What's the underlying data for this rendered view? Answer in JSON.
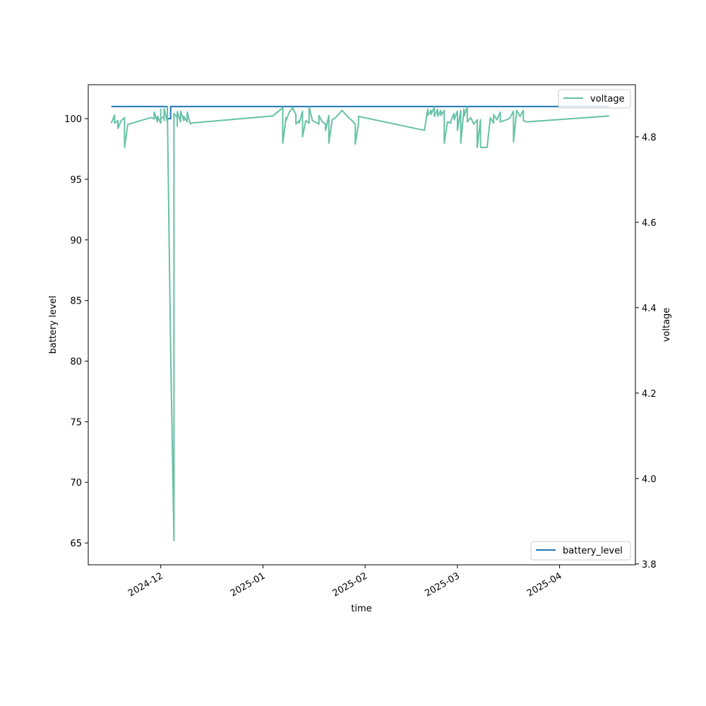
{
  "chart_data": {
    "type": "line",
    "title": "",
    "xlabel": "time",
    "x_tick_labels": [
      "2024-12",
      "2025-01",
      "2025-02",
      "2025-03",
      "2025-04"
    ],
    "x_tick_dates": [
      "2024-12-01",
      "2025-01-01",
      "2025-02-01",
      "2025-03-01",
      "2025-04-01"
    ],
    "x_range": [
      "2024-11-09",
      "2025-04-24"
    ],
    "left_axis": {
      "label": "battery level",
      "ylim": [
        63.2,
        102.8
      ],
      "ticks": [
        65,
        70,
        75,
        80,
        85,
        90,
        95,
        100
      ]
    },
    "right_axis": {
      "label": "voltage",
      "ylim": [
        3.798,
        4.922
      ],
      "ticks": [
        "3.8",
        "4.0",
        "4.2",
        "4.4",
        "4.6",
        "4.8"
      ]
    },
    "legends": [
      {
        "label": "voltage",
        "placement": "upper right"
      },
      {
        "label": "battery_level",
        "placement": "lower right"
      }
    ],
    "colors": {
      "battery_level": "#1f77b4",
      "voltage": "#66c2a5"
    },
    "grid": false,
    "series": [
      {
        "name": "battery_level",
        "axis": "left",
        "points": [
          [
            "2024-11-16",
            101
          ],
          [
            "2024-12-03",
            101
          ],
          [
            "2024-12-03",
            100
          ],
          [
            "2024-12-04",
            100
          ],
          [
            "2024-12-04",
            101
          ],
          [
            "2025-04-16",
            101
          ]
        ]
      },
      {
        "name": "voltage",
        "axis": "right",
        "points": [
          [
            "2024-11-16",
            4.832
          ],
          [
            "2024-11-17",
            4.851
          ],
          [
            "2024-11-17",
            4.832
          ],
          [
            "2024-11-18",
            4.838
          ],
          [
            "2024-11-18",
            4.82
          ],
          [
            "2024-11-19",
            4.838
          ],
          [
            "2024-11-20",
            4.845
          ],
          [
            "2024-11-20",
            4.835
          ],
          [
            "2024-11-20",
            4.775
          ],
          [
            "2024-11-21",
            4.829
          ],
          [
            "2024-11-28",
            4.845
          ],
          [
            "2024-11-29",
            4.842
          ],
          [
            "2024-11-29",
            4.858
          ],
          [
            "2024-11-30",
            4.835
          ],
          [
            "2024-11-30",
            4.848
          ],
          [
            "2024-12-01",
            4.832
          ],
          [
            "2024-12-01",
            4.865
          ],
          [
            "2024-12-01",
            4.842
          ],
          [
            "2024-12-02",
            4.848
          ],
          [
            "2024-12-02",
            4.838
          ],
          [
            "2024-12-02",
            4.866
          ],
          [
            "2024-12-03",
            4.835
          ],
          [
            "2024-12-03",
            4.87
          ],
          [
            "2024-12-04",
            4.3
          ],
          [
            "2024-12-05",
            3.855
          ],
          [
            "2024-12-05",
            4.855
          ],
          [
            "2024-12-06",
            4.845
          ],
          [
            "2024-12-06",
            4.825
          ],
          [
            "2024-12-06",
            4.859
          ],
          [
            "2024-12-07",
            4.835
          ],
          [
            "2024-12-07",
            4.86
          ],
          [
            "2024-12-08",
            4.838
          ],
          [
            "2024-12-08",
            4.848
          ],
          [
            "2024-12-09",
            4.835
          ],
          [
            "2024-12-09",
            4.858
          ],
          [
            "2024-12-10",
            4.83
          ],
          [
            "2024-12-10",
            4.832
          ],
          [
            "2025-01-04",
            4.849
          ],
          [
            "2025-01-07",
            4.868
          ],
          [
            "2025-01-07",
            4.785
          ],
          [
            "2025-01-08",
            4.845
          ],
          [
            "2025-01-08",
            4.838
          ],
          [
            "2025-01-09",
            4.858
          ],
          [
            "2025-01-10",
            4.868
          ],
          [
            "2025-01-11",
            4.852
          ],
          [
            "2025-01-11",
            4.83
          ],
          [
            "2025-01-12",
            4.838
          ],
          [
            "2025-01-12",
            4.832
          ],
          [
            "2025-01-13",
            4.86
          ],
          [
            "2025-01-13",
            4.8
          ],
          [
            "2025-01-14",
            4.838
          ],
          [
            "2025-01-15",
            4.832
          ],
          [
            "2025-01-15",
            4.87
          ],
          [
            "2025-01-16",
            4.838
          ],
          [
            "2025-01-18",
            4.83
          ],
          [
            "2025-01-18",
            4.85
          ],
          [
            "2025-01-19",
            4.835
          ],
          [
            "2025-01-20",
            4.83
          ],
          [
            "2025-01-20",
            4.815
          ],
          [
            "2025-01-21",
            4.85
          ],
          [
            "2025-01-21",
            4.785
          ],
          [
            "2025-01-22",
            4.84
          ],
          [
            "2025-01-23",
            4.845
          ],
          [
            "2025-01-25",
            4.862
          ],
          [
            "2025-01-27",
            4.845
          ],
          [
            "2025-01-28",
            4.838
          ],
          [
            "2025-01-29",
            4.83
          ],
          [
            "2025-01-29",
            4.783
          ],
          [
            "2025-01-30",
            4.832
          ],
          [
            "2025-01-30",
            4.848
          ],
          [
            "2025-02-19",
            4.815
          ],
          [
            "2025-02-20",
            4.865
          ],
          [
            "2025-02-20",
            4.85
          ],
          [
            "2025-02-21",
            4.862
          ],
          [
            "2025-02-21",
            4.852
          ],
          [
            "2025-02-22",
            4.87
          ],
          [
            "2025-02-22",
            4.848
          ],
          [
            "2025-02-23",
            4.865
          ],
          [
            "2025-02-23",
            4.848
          ],
          [
            "2025-02-24",
            4.862
          ],
          [
            "2025-02-24",
            4.85
          ],
          [
            "2025-02-25",
            4.862
          ],
          [
            "2025-02-25",
            4.785
          ],
          [
            "2025-02-26",
            4.835
          ],
          [
            "2025-02-27",
            4.832
          ],
          [
            "2025-02-27",
            4.838
          ],
          [
            "2025-02-28",
            4.855
          ],
          [
            "2025-02-28",
            4.84
          ],
          [
            "2025-03-01",
            4.86
          ],
          [
            "2025-03-01",
            4.815
          ],
          [
            "2025-03-02",
            4.862
          ],
          [
            "2025-03-02",
            4.785
          ],
          [
            "2025-03-03",
            4.865
          ],
          [
            "2025-03-03",
            4.848
          ],
          [
            "2025-03-04",
            4.87
          ],
          [
            "2025-03-04",
            4.835
          ],
          [
            "2025-03-05",
            4.845
          ],
          [
            "2025-03-06",
            4.83
          ],
          [
            "2025-03-07",
            4.84
          ],
          [
            "2025-03-07",
            4.775
          ],
          [
            "2025-03-08",
            4.84
          ],
          [
            "2025-03-08",
            4.775
          ],
          [
            "2025-03-10",
            4.775
          ],
          [
            "2025-03-11",
            4.845
          ],
          [
            "2025-03-12",
            4.832
          ],
          [
            "2025-03-12",
            4.852
          ],
          [
            "2025-03-13",
            4.84
          ],
          [
            "2025-03-14",
            4.858
          ],
          [
            "2025-03-14",
            4.835
          ],
          [
            "2025-03-16",
            4.84
          ],
          [
            "2025-03-17",
            4.845
          ],
          [
            "2025-03-18",
            4.86
          ],
          [
            "2025-03-18",
            4.788
          ],
          [
            "2025-03-19",
            4.862
          ],
          [
            "2025-03-20",
            4.848
          ],
          [
            "2025-03-21",
            4.862
          ],
          [
            "2025-03-21",
            4.838
          ],
          [
            "2025-03-22",
            4.835
          ],
          [
            "2025-04-16",
            4.849
          ]
        ]
      }
    ]
  }
}
